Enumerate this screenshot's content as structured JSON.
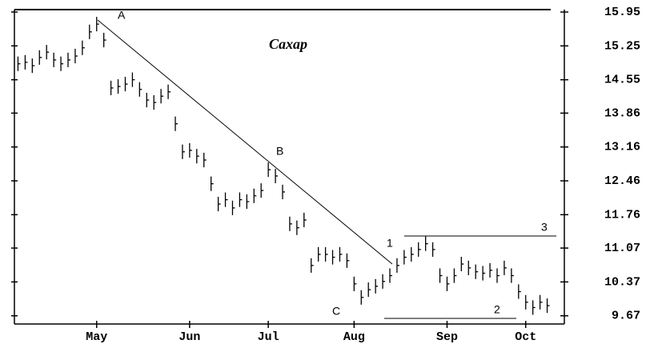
{
  "chart_data": {
    "type": "ohlc",
    "title": "Сахар",
    "color": "#000000",
    "categories": [
      null,
      null,
      null,
      null,
      null,
      null,
      null,
      null,
      null,
      null,
      null,
      "May",
      null,
      null,
      null,
      null,
      null,
      null,
      null,
      null,
      null,
      null,
      null,
      null,
      "Jun",
      null,
      null,
      null,
      null,
      null,
      null,
      null,
      null,
      null,
      null,
      "Jul",
      null,
      null,
      null,
      null,
      null,
      null,
      null,
      null,
      null,
      null,
      null,
      "Aug",
      null,
      null,
      null,
      null,
      null,
      null,
      null,
      null,
      null,
      null,
      null,
      null,
      "Sep",
      null,
      null,
      null,
      null,
      null,
      null,
      null,
      null,
      null,
      null,
      "Oct",
      null,
      null,
      null
    ],
    "high": [
      15.03,
      15.06,
      14.99,
      15.16,
      15.27,
      15.11,
      15.03,
      15.11,
      15.19,
      15.36,
      15.69,
      15.85,
      15.52,
      14.53,
      14.56,
      14.61,
      14.7,
      14.5,
      14.28,
      14.23,
      14.36,
      14.45,
      13.79,
      13.21,
      13.24,
      13.12,
      13.04,
      12.55,
      12.13,
      12.22,
      12.05,
      12.22,
      12.18,
      12.3,
      12.41,
      12.84,
      12.71,
      12.38,
      11.72,
      11.64,
      11.8,
      10.86,
      11.09,
      11.09,
      11.03,
      11.09,
      10.96,
      10.48,
      10.2,
      10.36,
      10.43,
      10.53,
      10.65,
      10.86,
      11.03,
      11.09,
      11.19,
      11.31,
      11.19,
      10.65,
      10.48,
      10.65,
      10.89,
      10.81,
      10.73,
      10.7,
      10.76,
      10.65,
      10.81,
      10.65,
      10.32,
      10.1,
      9.99,
      10.1,
      10.03
    ],
    "low": [
      14.73,
      14.76,
      14.69,
      14.86,
      14.97,
      14.81,
      14.73,
      14.81,
      14.89,
      15.06,
      15.39,
      15.55,
      15.22,
      14.23,
      14.26,
      14.31,
      14.4,
      14.2,
      13.98,
      13.93,
      14.06,
      14.15,
      13.49,
      12.91,
      12.94,
      12.82,
      12.74,
      12.25,
      11.83,
      11.92,
      11.75,
      11.92,
      11.88,
      12.0,
      12.11,
      12.54,
      12.41,
      12.08,
      11.42,
      11.34,
      11.5,
      10.56,
      10.79,
      10.79,
      10.73,
      10.79,
      10.66,
      10.18,
      9.9,
      10.06,
      10.13,
      10.23,
      10.35,
      10.56,
      10.73,
      10.79,
      10.89,
      11.01,
      10.89,
      10.35,
      10.18,
      10.35,
      10.59,
      10.51,
      10.43,
      10.4,
      10.46,
      10.35,
      10.51,
      10.35,
      10.02,
      9.8,
      9.69,
      9.8,
      9.73
    ],
    "close": [
      14.88,
      14.91,
      14.84,
      15.01,
      15.12,
      14.96,
      14.88,
      14.96,
      15.04,
      15.21,
      15.54,
      15.7,
      15.37,
      14.38,
      14.41,
      14.46,
      14.55,
      14.35,
      14.13,
      14.08,
      14.21,
      14.3,
      13.64,
      13.06,
      13.09,
      12.97,
      12.89,
      12.4,
      11.98,
      12.07,
      11.9,
      12.07,
      12.03,
      12.15,
      12.26,
      12.69,
      12.56,
      12.23,
      11.57,
      11.49,
      11.65,
      10.71,
      10.94,
      10.94,
      10.88,
      10.94,
      10.81,
      10.33,
      10.05,
      10.21,
      10.28,
      10.38,
      10.5,
      10.71,
      10.88,
      10.94,
      11.04,
      11.16,
      11.04,
      10.5,
      10.33,
      10.5,
      10.74,
      10.66,
      10.58,
      10.55,
      10.61,
      10.5,
      10.66,
      10.5,
      10.17,
      9.95,
      9.84,
      9.95,
      9.88
    ],
    "ylim": [
      9.5,
      16.0
    ],
    "yticks": [
      15.95,
      15.25,
      14.55,
      13.86,
      13.16,
      12.46,
      11.76,
      11.07,
      10.37,
      9.67
    ],
    "annotations": [
      "A",
      "B",
      "C",
      "1",
      "2",
      "3"
    ]
  }
}
